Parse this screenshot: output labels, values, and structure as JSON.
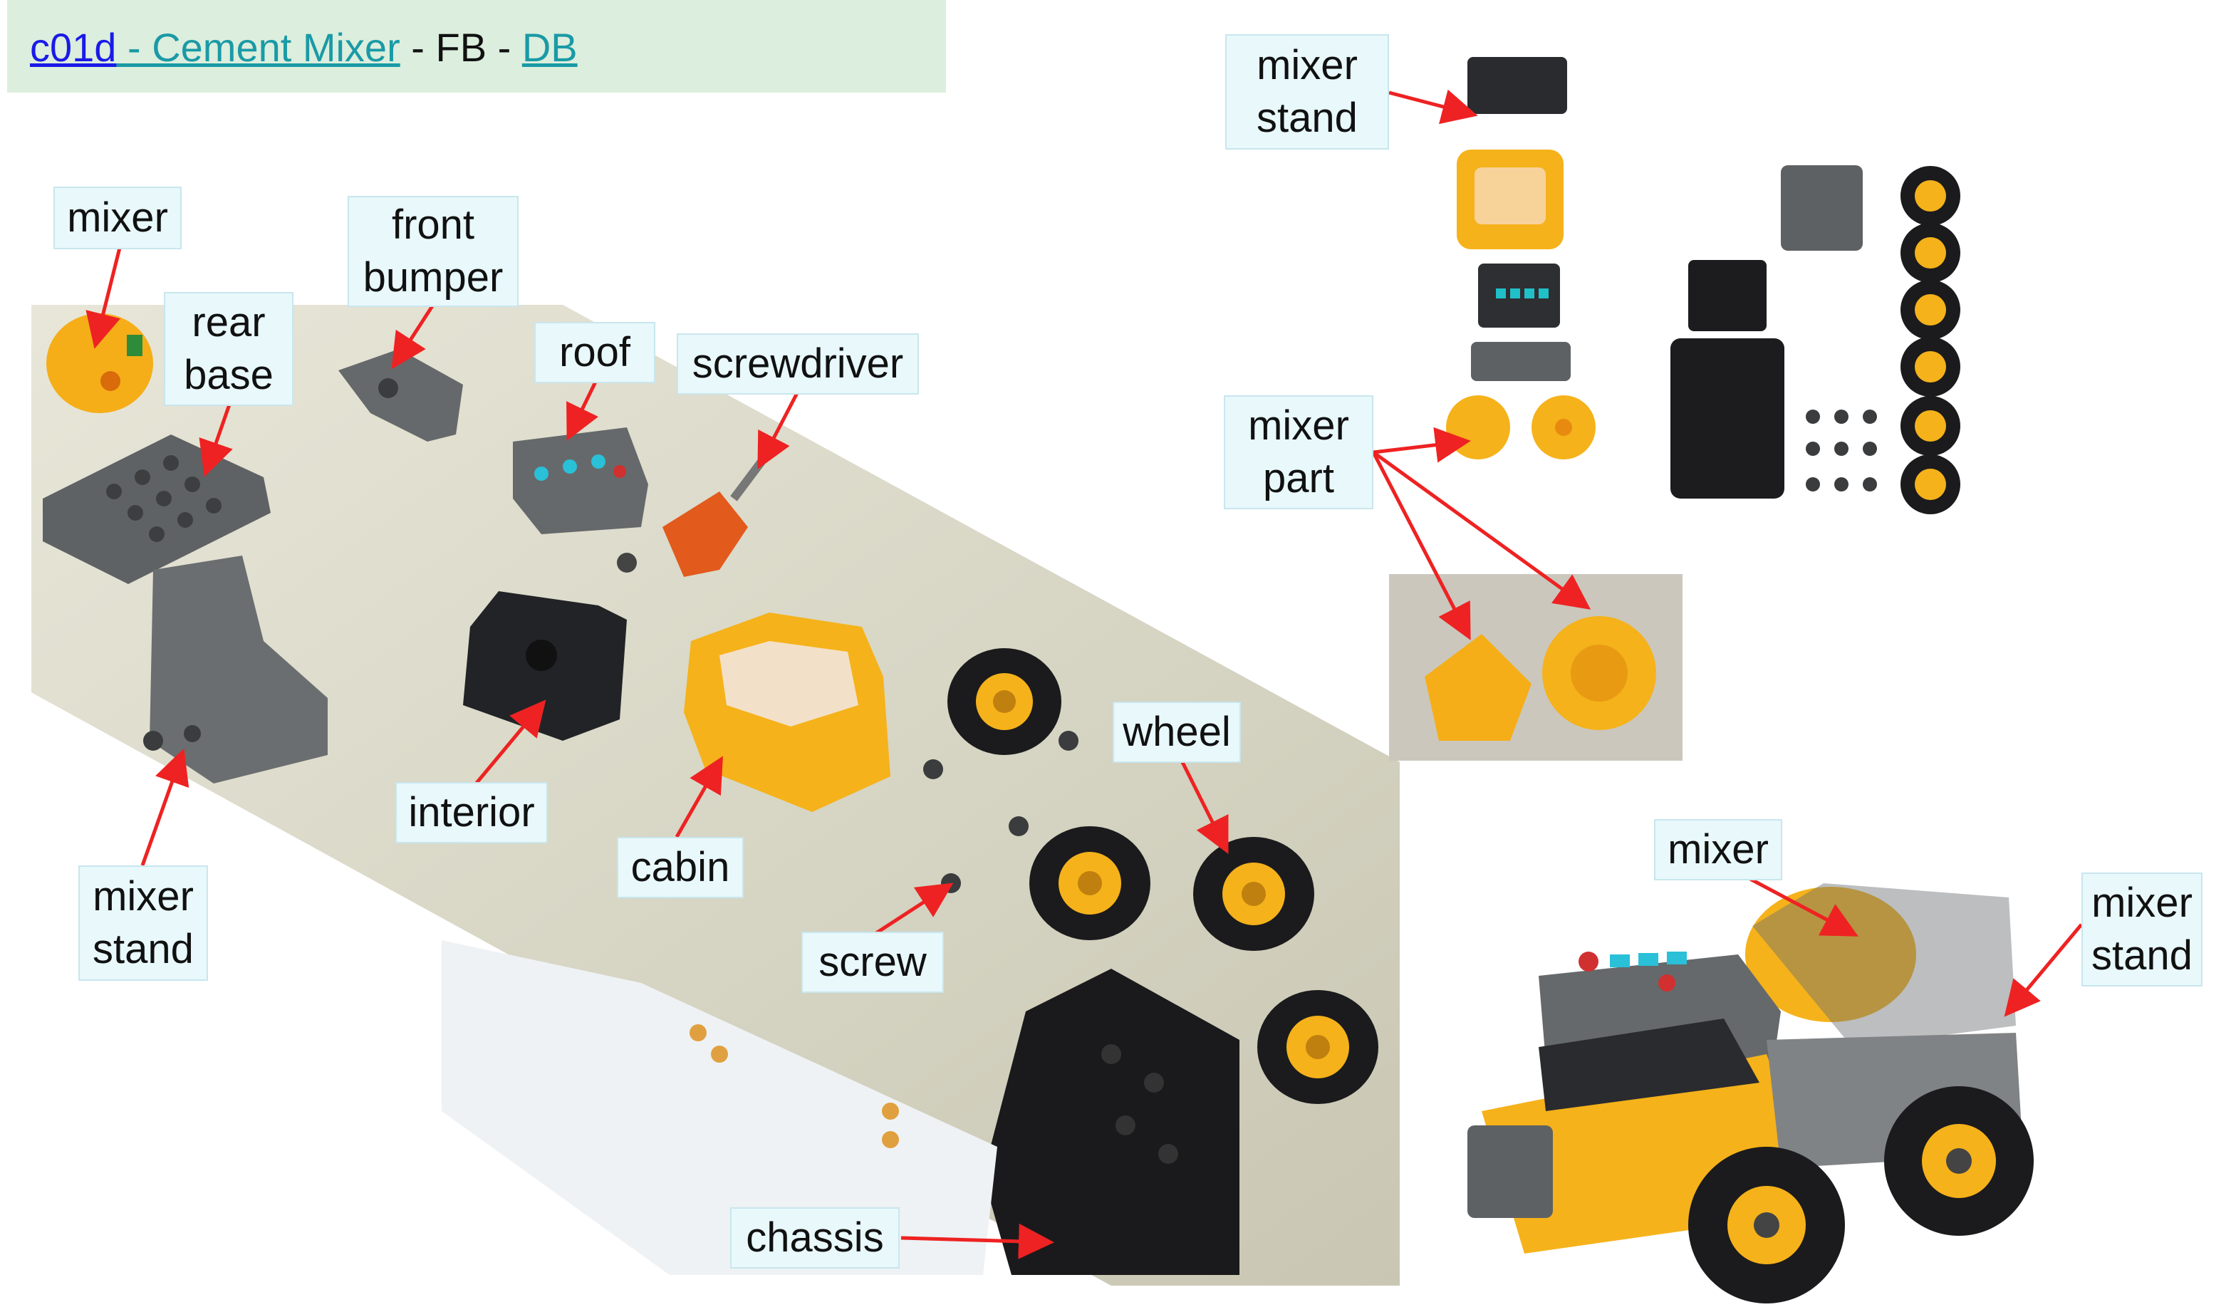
{
  "header": {
    "code": "c01d",
    "title": " - Cement Mixer",
    "sep1": " - FB - ",
    "db": "DB"
  },
  "labels": {
    "mixer_left": "mixer",
    "rear_base": "rear base",
    "front_bumper": "front bumper",
    "roof": "roof",
    "screwdriver": "screwdriver",
    "interior": "interior",
    "cabin": "cabin",
    "wheel": "wheel",
    "mixer_stand_left": "mixer stand",
    "screw": "screw",
    "chassis": "chassis",
    "mixer_stand_top": "mixer stand",
    "mixer_part": "mixer part",
    "mixer_right": "mixer",
    "mixer_stand_right": "mixer stand"
  },
  "colors": {
    "arrow": "#ee2222",
    "label_bg": "#e8f8fb",
    "header_bg": "#dceedd",
    "toy_yellow": "#f5b21a",
    "toy_gray": "#6b6e70",
    "toy_black": "#1e1e22"
  }
}
